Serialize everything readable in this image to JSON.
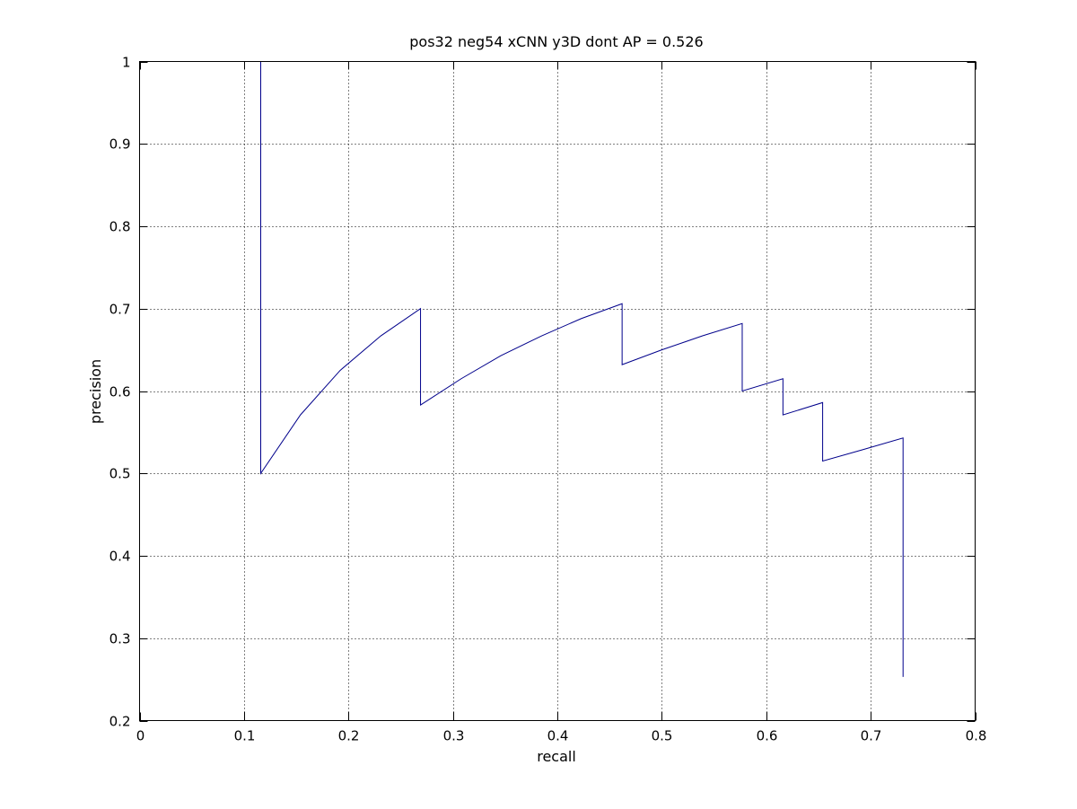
{
  "chart_data": {
    "type": "line",
    "title": "pos32 neg54 xCNN y3D dont AP = 0.526",
    "xlabel": "recall",
    "ylabel": "precision",
    "xlim": [
      0,
      0.8
    ],
    "ylim": [
      0.2,
      1
    ],
    "xticks": [
      0,
      0.1,
      0.2,
      0.3,
      0.4,
      0.5,
      0.6,
      0.7,
      0.8
    ],
    "xtick_labels": [
      "0",
      "0.1",
      "0.2",
      "0.3",
      "0.4",
      "0.5",
      "0.6",
      "0.7",
      "0.8"
    ],
    "yticks": [
      0.2,
      0.3,
      0.4,
      0.5,
      0.6,
      0.7,
      0.8,
      0.9,
      1
    ],
    "ytick_labels": [
      "0.2",
      "0.3",
      "0.4",
      "0.5",
      "0.6",
      "0.7",
      "0.8",
      "0.9",
      "1"
    ],
    "grid": true,
    "series": [
      {
        "color": "#00008b",
        "x": [
          0.116,
          0.116,
          0.154,
          0.192,
          0.231,
          0.269,
          0.269,
          0.308,
          0.346,
          0.385,
          0.423,
          0.462,
          0.462,
          0.5,
          0.539,
          0.577,
          0.577,
          0.616,
          0.616,
          0.654,
          0.654,
          0.693,
          0.731,
          0.731
        ],
        "y": [
          1.0,
          0.5,
          0.571,
          0.625,
          0.667,
          0.7,
          0.583,
          0.615,
          0.643,
          0.667,
          0.688,
          0.706,
          0.632,
          0.65,
          0.667,
          0.682,
          0.6,
          0.615,
          0.571,
          0.586,
          0.515,
          0.529,
          0.543,
          0.253
        ]
      }
    ]
  }
}
